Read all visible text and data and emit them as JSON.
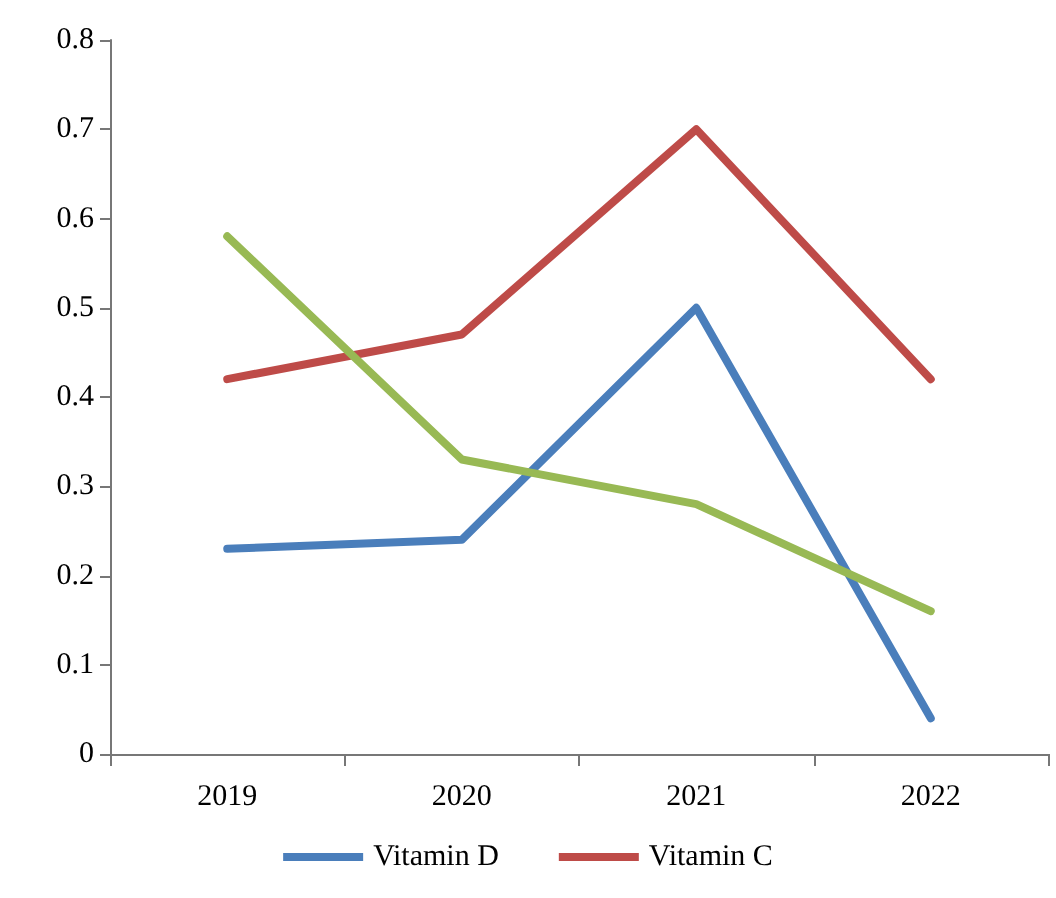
{
  "chart_data": {
    "type": "line",
    "categories": [
      "2019",
      "2020",
      "2021",
      "2022"
    ],
    "series": [
      {
        "name": "Vitamin D",
        "color": "#4a7ebb",
        "values": [
          0.23,
          0.24,
          0.5,
          0.04
        ]
      },
      {
        "name": "Vitamin C",
        "color": "#be4b48",
        "values": [
          0.42,
          0.47,
          0.7,
          0.42
        ]
      },
      {
        "color": "#98b954",
        "values": [
          0.58,
          0.33,
          0.28,
          0.16
        ]
      }
    ],
    "ylim": [
      0,
      0.8
    ],
    "yticks": [
      0,
      0.1,
      0.2,
      0.3,
      0.4,
      0.5,
      0.6,
      0.7,
      0.8
    ],
    "grid": false,
    "legend": "bottom",
    "marker": "none",
    "line_style": "solid"
  }
}
